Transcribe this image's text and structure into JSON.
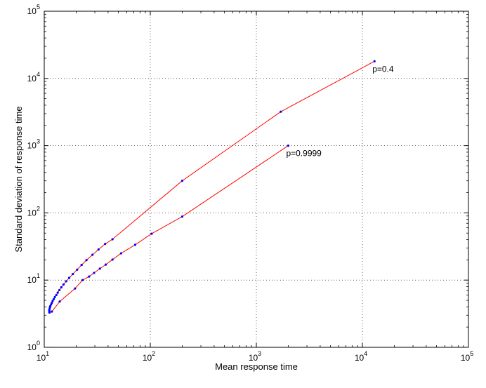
{
  "chart_data": {
    "type": "line",
    "xscale": "log",
    "yscale": "log",
    "xlim": [
      10,
      100000
    ],
    "ylim": [
      1,
      100000
    ],
    "grid": true,
    "xlabel": "Mean response time",
    "ylabel": "Standard deviation of response time",
    "xtick_labels": [
      {
        "base": "10",
        "exp": "1"
      },
      {
        "base": "10",
        "exp": "2"
      },
      {
        "base": "10",
        "exp": "3"
      },
      {
        "base": "10",
        "exp": "4"
      },
      {
        "base": "10",
        "exp": "5"
      }
    ],
    "ytick_labels": [
      {
        "base": "10",
        "exp": "0"
      },
      {
        "base": "10",
        "exp": "1"
      },
      {
        "base": "10",
        "exp": "2"
      },
      {
        "base": "10",
        "exp": "3"
      },
      {
        "base": "10",
        "exp": "4"
      },
      {
        "base": "10",
        "exp": "5"
      }
    ],
    "line_color": "#ff0000",
    "marker_color": "#0000ff",
    "series": [
      {
        "label": "p=0.4",
        "points": [
          [
            11.2,
            3.3
          ],
          [
            11.15,
            3.5
          ],
          [
            11.2,
            3.7
          ],
          [
            11.3,
            3.9
          ],
          [
            11.4,
            4.1
          ],
          [
            11.6,
            4.35
          ],
          [
            11.8,
            4.6
          ],
          [
            12.0,
            4.9
          ],
          [
            12.3,
            5.2
          ],
          [
            12.6,
            5.6
          ],
          [
            13.0,
            6.0
          ],
          [
            13.4,
            6.5
          ],
          [
            13.9,
            7.1
          ],
          [
            14.5,
            7.8
          ],
          [
            15.2,
            8.6
          ],
          [
            16.1,
            9.6
          ],
          [
            17.2,
            10.8
          ],
          [
            18.6,
            12.3
          ],
          [
            20.4,
            14.3
          ],
          [
            22.5,
            16.8
          ],
          [
            25.0,
            19.8
          ],
          [
            28.5,
            23.8
          ],
          [
            32.5,
            28.5
          ],
          [
            37.5,
            34.5
          ],
          [
            44.0,
            40.5
          ],
          [
            200,
            300
          ],
          [
            1700,
            3200
          ],
          [
            13000,
            18000
          ]
        ]
      },
      {
        "label": "p=0.9999",
        "points": [
          [
            11.2,
            3.3
          ],
          [
            11.8,
            3.4
          ],
          [
            14.0,
            4.8
          ],
          [
            19.5,
            7.5
          ],
          [
            23.0,
            10.0
          ],
          [
            26.5,
            11.3
          ],
          [
            29.5,
            12.8
          ],
          [
            33.5,
            14.8
          ],
          [
            38.0,
            17.0
          ],
          [
            44.0,
            20.2
          ],
          [
            53.0,
            25.0
          ],
          [
            72.0,
            33.5
          ],
          [
            103,
            49.0
          ],
          [
            200,
            88
          ],
          [
            2000,
            1000
          ]
        ]
      }
    ]
  }
}
